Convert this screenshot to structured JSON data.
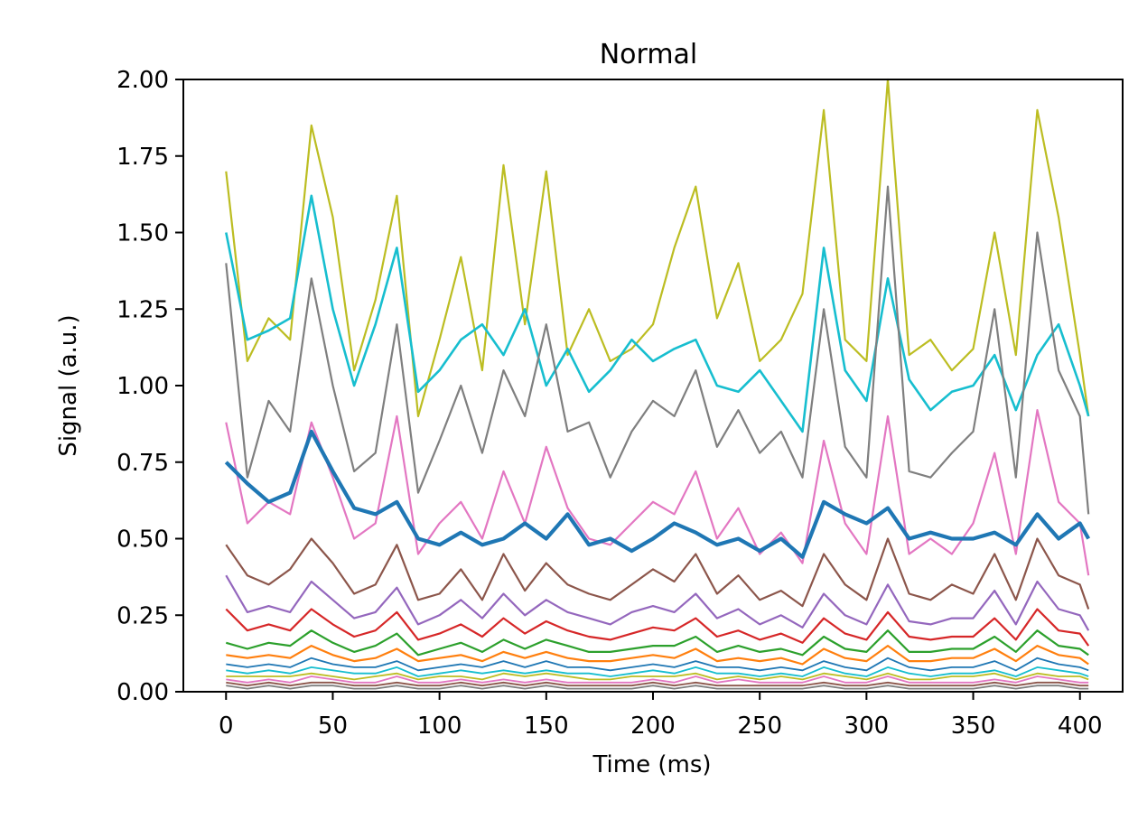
{
  "chart_data": {
    "type": "line",
    "title": "Normal",
    "xlabel": "Time (ms)",
    "ylabel": "Signal (a.u.)",
    "xlim": [
      -20,
      420
    ],
    "ylim": [
      0,
      2
    ],
    "xticks": [
      0,
      50,
      100,
      150,
      200,
      250,
      300,
      350,
      400
    ],
    "xtick_labels": [
      "0",
      "50",
      "100",
      "150",
      "200",
      "250",
      "300",
      "350",
      "400"
    ],
    "yticks": [
      0,
      0.25,
      0.5,
      0.75,
      1,
      1.25,
      1.5,
      1.75,
      2
    ],
    "ytick_labels": [
      "0.00",
      "0.25",
      "0.50",
      "0.75",
      "1.00",
      "1.25",
      "1.50",
      "1.75",
      "2.00"
    ],
    "grid": false,
    "legend": "none",
    "x": [
      0,
      10,
      20,
      30,
      40,
      50,
      60,
      70,
      80,
      90,
      100,
      110,
      120,
      130,
      140,
      150,
      160,
      170,
      180,
      190,
      200,
      210,
      220,
      230,
      240,
      250,
      260,
      270,
      280,
      290,
      300,
      310,
      320,
      330,
      340,
      350,
      360,
      370,
      380,
      390,
      400,
      404
    ],
    "series": [
      {
        "color": "#bcbd22",
        "stroke": 2.2,
        "values": [
          1.7,
          1.08,
          1.22,
          1.15,
          1.85,
          1.55,
          1.05,
          1.28,
          1.62,
          0.9,
          1.15,
          1.42,
          1.05,
          1.72,
          1.2,
          1.7,
          1.1,
          1.25,
          1.08,
          1.12,
          1.2,
          1.45,
          1.65,
          1.22,
          1.4,
          1.08,
          1.15,
          1.3,
          1.9,
          1.15,
          1.08,
          2.0,
          1.1,
          1.15,
          1.05,
          1.12,
          1.5,
          1.1,
          1.9,
          1.55,
          1.1,
          0.9
        ]
      },
      {
        "color": "#17becf",
        "stroke": 2.6,
        "values": [
          1.5,
          1.15,
          1.18,
          1.22,
          1.62,
          1.25,
          1.0,
          1.2,
          1.45,
          0.98,
          1.05,
          1.15,
          1.2,
          1.1,
          1.25,
          1.0,
          1.12,
          0.98,
          1.05,
          1.15,
          1.08,
          1.12,
          1.15,
          1.0,
          0.98,
          1.05,
          0.95,
          0.85,
          1.45,
          1.05,
          0.95,
          1.35,
          1.02,
          0.92,
          0.98,
          1.0,
          1.1,
          0.92,
          1.1,
          1.2,
          1.0,
          0.9
        ]
      },
      {
        "color": "#7f7f7f",
        "stroke": 2.2,
        "values": [
          1.4,
          0.7,
          0.95,
          0.85,
          1.35,
          1.0,
          0.72,
          0.78,
          1.2,
          0.65,
          0.82,
          1.0,
          0.78,
          1.05,
          0.9,
          1.2,
          0.85,
          0.88,
          0.7,
          0.85,
          0.95,
          0.9,
          1.05,
          0.8,
          0.92,
          0.78,
          0.85,
          0.7,
          1.25,
          0.8,
          0.7,
          1.65,
          0.72,
          0.7,
          0.78,
          0.85,
          1.25,
          0.7,
          1.5,
          1.05,
          0.9,
          0.58
        ]
      },
      {
        "color": "#e377c2",
        "stroke": 2.2,
        "values": [
          0.88,
          0.55,
          0.62,
          0.58,
          0.88,
          0.7,
          0.5,
          0.55,
          0.9,
          0.45,
          0.55,
          0.62,
          0.5,
          0.72,
          0.55,
          0.8,
          0.6,
          0.5,
          0.48,
          0.55,
          0.62,
          0.58,
          0.72,
          0.5,
          0.6,
          0.45,
          0.52,
          0.42,
          0.82,
          0.55,
          0.45,
          0.9,
          0.45,
          0.5,
          0.45,
          0.55,
          0.78,
          0.45,
          0.92,
          0.62,
          0.55,
          0.38
        ]
      },
      {
        "color": "#1f77b4",
        "stroke": 4.2,
        "values": [
          0.75,
          0.68,
          0.62,
          0.65,
          0.85,
          0.72,
          0.6,
          0.58,
          0.62,
          0.5,
          0.48,
          0.52,
          0.48,
          0.5,
          0.55,
          0.5,
          0.58,
          0.48,
          0.5,
          0.46,
          0.5,
          0.55,
          0.52,
          0.48,
          0.5,
          0.46,
          0.5,
          0.44,
          0.62,
          0.58,
          0.55,
          0.6,
          0.5,
          0.52,
          0.5,
          0.5,
          0.52,
          0.48,
          0.58,
          0.5,
          0.55,
          0.5
        ]
      },
      {
        "color": "#8c564b",
        "stroke": 2.2,
        "values": [
          0.48,
          0.38,
          0.35,
          0.4,
          0.5,
          0.42,
          0.32,
          0.35,
          0.48,
          0.3,
          0.32,
          0.4,
          0.3,
          0.45,
          0.33,
          0.42,
          0.35,
          0.32,
          0.3,
          0.35,
          0.4,
          0.36,
          0.45,
          0.32,
          0.38,
          0.3,
          0.33,
          0.28,
          0.45,
          0.35,
          0.3,
          0.5,
          0.32,
          0.3,
          0.35,
          0.32,
          0.45,
          0.3,
          0.5,
          0.38,
          0.35,
          0.27
        ]
      },
      {
        "color": "#9467bd",
        "stroke": 2.2,
        "values": [
          0.38,
          0.26,
          0.28,
          0.26,
          0.36,
          0.3,
          0.24,
          0.26,
          0.34,
          0.22,
          0.25,
          0.3,
          0.24,
          0.32,
          0.25,
          0.3,
          0.26,
          0.24,
          0.22,
          0.26,
          0.28,
          0.26,
          0.32,
          0.24,
          0.27,
          0.22,
          0.25,
          0.21,
          0.32,
          0.25,
          0.22,
          0.35,
          0.23,
          0.22,
          0.24,
          0.24,
          0.33,
          0.22,
          0.36,
          0.27,
          0.25,
          0.2
        ]
      },
      {
        "color": "#d62728",
        "stroke": 2.2,
        "values": [
          0.27,
          0.2,
          0.22,
          0.2,
          0.27,
          0.22,
          0.18,
          0.2,
          0.26,
          0.17,
          0.19,
          0.22,
          0.18,
          0.24,
          0.19,
          0.23,
          0.2,
          0.18,
          0.17,
          0.19,
          0.21,
          0.2,
          0.24,
          0.18,
          0.2,
          0.17,
          0.19,
          0.16,
          0.24,
          0.19,
          0.17,
          0.26,
          0.18,
          0.17,
          0.18,
          0.18,
          0.24,
          0.17,
          0.27,
          0.2,
          0.19,
          0.15
        ]
      },
      {
        "color": "#2ca02c",
        "stroke": 2.2,
        "values": [
          0.16,
          0.14,
          0.16,
          0.15,
          0.2,
          0.16,
          0.13,
          0.15,
          0.19,
          0.12,
          0.14,
          0.16,
          0.13,
          0.17,
          0.14,
          0.17,
          0.15,
          0.13,
          0.13,
          0.14,
          0.15,
          0.15,
          0.18,
          0.13,
          0.15,
          0.13,
          0.14,
          0.12,
          0.18,
          0.14,
          0.13,
          0.2,
          0.13,
          0.13,
          0.14,
          0.14,
          0.18,
          0.13,
          0.2,
          0.15,
          0.14,
          0.12
        ]
      },
      {
        "color": "#ff7f0e",
        "stroke": 2.2,
        "values": [
          0.12,
          0.11,
          0.12,
          0.11,
          0.15,
          0.12,
          0.1,
          0.11,
          0.14,
          0.1,
          0.11,
          0.12,
          0.1,
          0.13,
          0.11,
          0.13,
          0.11,
          0.1,
          0.1,
          0.11,
          0.12,
          0.11,
          0.14,
          0.1,
          0.11,
          0.1,
          0.11,
          0.09,
          0.14,
          0.11,
          0.1,
          0.15,
          0.1,
          0.1,
          0.11,
          0.11,
          0.14,
          0.1,
          0.15,
          0.12,
          0.11,
          0.09
        ]
      },
      {
        "color": "#1f77b4",
        "stroke": 1.8,
        "values": [
          0.09,
          0.08,
          0.09,
          0.08,
          0.11,
          0.09,
          0.08,
          0.08,
          0.1,
          0.07,
          0.08,
          0.09,
          0.08,
          0.1,
          0.08,
          0.1,
          0.08,
          0.08,
          0.07,
          0.08,
          0.09,
          0.08,
          0.1,
          0.08,
          0.08,
          0.07,
          0.08,
          0.07,
          0.1,
          0.08,
          0.07,
          0.11,
          0.08,
          0.07,
          0.08,
          0.08,
          0.1,
          0.07,
          0.11,
          0.09,
          0.08,
          0.07
        ]
      },
      {
        "color": "#17becf",
        "stroke": 1.8,
        "values": [
          0.07,
          0.06,
          0.07,
          0.06,
          0.08,
          0.07,
          0.06,
          0.06,
          0.08,
          0.05,
          0.06,
          0.07,
          0.06,
          0.07,
          0.06,
          0.07,
          0.06,
          0.06,
          0.05,
          0.06,
          0.07,
          0.06,
          0.08,
          0.06,
          0.06,
          0.05,
          0.06,
          0.05,
          0.08,
          0.06,
          0.05,
          0.08,
          0.06,
          0.05,
          0.06,
          0.06,
          0.07,
          0.05,
          0.08,
          0.07,
          0.06,
          0.05
        ]
      },
      {
        "color": "#bcbd22",
        "stroke": 1.8,
        "values": [
          0.05,
          0.05,
          0.05,
          0.05,
          0.06,
          0.05,
          0.04,
          0.05,
          0.06,
          0.04,
          0.05,
          0.05,
          0.04,
          0.06,
          0.05,
          0.06,
          0.05,
          0.04,
          0.04,
          0.05,
          0.05,
          0.05,
          0.06,
          0.04,
          0.05,
          0.04,
          0.05,
          0.04,
          0.06,
          0.05,
          0.04,
          0.06,
          0.04,
          0.04,
          0.05,
          0.05,
          0.06,
          0.04,
          0.06,
          0.05,
          0.05,
          0.04
        ]
      },
      {
        "color": "#e377c2",
        "stroke": 1.8,
        "values": [
          0.04,
          0.03,
          0.04,
          0.03,
          0.05,
          0.04,
          0.03,
          0.03,
          0.05,
          0.03,
          0.03,
          0.04,
          0.03,
          0.04,
          0.03,
          0.04,
          0.03,
          0.03,
          0.03,
          0.03,
          0.04,
          0.03,
          0.05,
          0.03,
          0.04,
          0.03,
          0.03,
          0.03,
          0.05,
          0.03,
          0.03,
          0.05,
          0.03,
          0.03,
          0.03,
          0.03,
          0.04,
          0.03,
          0.05,
          0.04,
          0.03,
          0.03
        ]
      },
      {
        "color": "#8c564b",
        "stroke": 1.8,
        "values": [
          0.03,
          0.02,
          0.03,
          0.02,
          0.03,
          0.03,
          0.02,
          0.02,
          0.03,
          0.02,
          0.02,
          0.03,
          0.02,
          0.03,
          0.02,
          0.03,
          0.02,
          0.02,
          0.02,
          0.02,
          0.03,
          0.02,
          0.03,
          0.02,
          0.02,
          0.02,
          0.02,
          0.02,
          0.03,
          0.02,
          0.02,
          0.03,
          0.02,
          0.02,
          0.02,
          0.02,
          0.03,
          0.02,
          0.03,
          0.03,
          0.02,
          0.02
        ]
      },
      {
        "color": "#7f7f7f",
        "stroke": 1.8,
        "values": [
          0.02,
          0.01,
          0.02,
          0.01,
          0.02,
          0.02,
          0.01,
          0.01,
          0.02,
          0.01,
          0.01,
          0.02,
          0.01,
          0.02,
          0.01,
          0.02,
          0.01,
          0.01,
          0.01,
          0.01,
          0.02,
          0.01,
          0.02,
          0.01,
          0.01,
          0.01,
          0.01,
          0.01,
          0.02,
          0.01,
          0.01,
          0.02,
          0.01,
          0.01,
          0.01,
          0.01,
          0.02,
          0.01,
          0.02,
          0.02,
          0.01,
          0.01
        ]
      }
    ]
  }
}
